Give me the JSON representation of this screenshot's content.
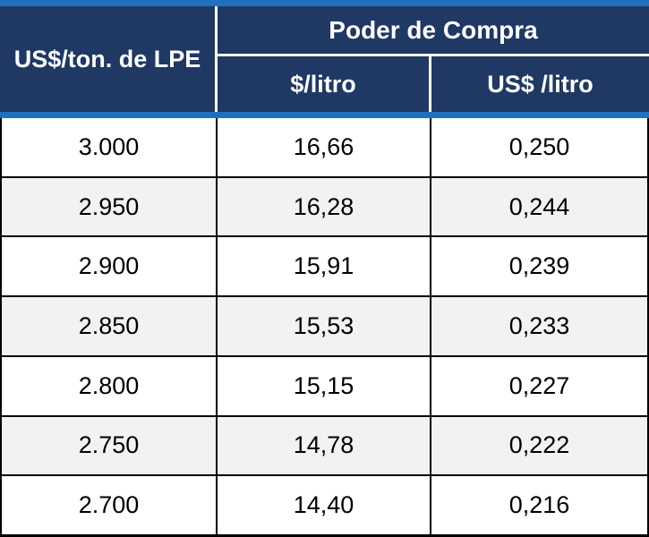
{
  "colors": {
    "header_bg": "#1F3864",
    "accent": "#2070C0",
    "row_alt_bg": "#F2F2F2",
    "grid_border": "#000000",
    "header_text": "#FFFFFF",
    "body_text": "#000000"
  },
  "header": {
    "col1": "US$/ton. de LPE",
    "group": "Poder de Compra",
    "sub1": "$/litro",
    "sub2": "US$ /litro"
  },
  "chart_data": {
    "type": "table",
    "title": "Poder de Compra",
    "columns": [
      "US$/ton. de LPE",
      "$/litro",
      "US$ /litro"
    ],
    "rows": [
      [
        "3.000",
        "16,66",
        "0,250"
      ],
      [
        "2.950",
        "16,28",
        "0,244"
      ],
      [
        "2.900",
        "15,91",
        "0,239"
      ],
      [
        "2.850",
        "15,53",
        "0,233"
      ],
      [
        "2.800",
        "15,15",
        "0,227"
      ],
      [
        "2.750",
        "14,78",
        "0,222"
      ],
      [
        "2.700",
        "14,40",
        "0,216"
      ]
    ]
  }
}
